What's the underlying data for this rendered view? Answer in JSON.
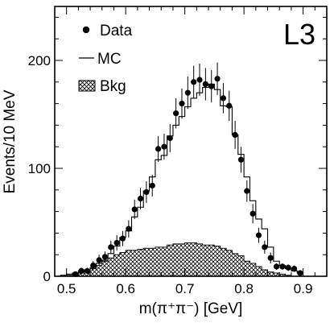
{
  "chart_data": {
    "type": "histogram",
    "panel_label": "L3",
    "xlabel": "m(π⁺π⁻) [GeV]",
    "ylabel": "Events/10 MeV",
    "xlim": [
      0.48,
      0.94
    ],
    "ylim": [
      0,
      250
    ],
    "x_ticks": [
      0.5,
      0.6,
      0.7,
      0.8,
      0.9
    ],
    "y_ticks": [
      0,
      100,
      200
    ],
    "legend": {
      "position": "top-left",
      "entries": [
        {
          "label": "Data",
          "marker": "dot"
        },
        {
          "label": "MC",
          "marker": "line"
        },
        {
          "label": "Bkg",
          "marker": "hatched-box"
        }
      ]
    },
    "bin_width": 0.01,
    "data": {
      "name": "Data",
      "x": [
        0.515,
        0.525,
        0.535,
        0.545,
        0.555,
        0.565,
        0.575,
        0.585,
        0.595,
        0.605,
        0.615,
        0.625,
        0.635,
        0.645,
        0.655,
        0.665,
        0.675,
        0.685,
        0.695,
        0.705,
        0.715,
        0.725,
        0.735,
        0.745,
        0.755,
        0.765,
        0.775,
        0.785,
        0.795,
        0.805,
        0.815,
        0.825,
        0.835,
        0.845,
        0.855,
        0.865,
        0.875,
        0.885,
        0.895
      ],
      "y": [
        2,
        5,
        5,
        10,
        15,
        18,
        27,
        31,
        35,
        44,
        62,
        72,
        78,
        84,
        118,
        120,
        128,
        151,
        160,
        170,
        180,
        182,
        178,
        176,
        183,
        165,
        158,
        131,
        108,
        79,
        58,
        38,
        27,
        17,
        9,
        9,
        8,
        7,
        3
      ],
      "err": [
        2,
        3,
        3,
        4,
        5,
        5,
        6,
        7,
        7,
        8,
        9,
        10,
        10,
        10,
        12,
        12,
        13,
        14,
        14,
        15,
        15,
        15,
        15,
        15,
        15,
        14,
        14,
        13,
        12,
        10,
        9,
        7,
        6,
        5,
        3,
        3,
        3,
        3,
        2
      ]
    },
    "mc": {
      "name": "MC",
      "bin_edges": [
        0.48,
        0.49,
        0.5,
        0.51,
        0.52,
        0.53,
        0.54,
        0.55,
        0.56,
        0.57,
        0.58,
        0.59,
        0.6,
        0.61,
        0.62,
        0.63,
        0.64,
        0.65,
        0.66,
        0.67,
        0.68,
        0.69,
        0.7,
        0.71,
        0.72,
        0.73,
        0.74,
        0.75,
        0.76,
        0.77,
        0.78,
        0.79,
        0.8,
        0.81,
        0.82,
        0.83,
        0.84,
        0.85,
        0.86,
        0.87,
        0.88,
        0.89,
        0.9
      ],
      "values": [
        0,
        1,
        2,
        3,
        5,
        6,
        8,
        12,
        15,
        21,
        28,
        36,
        42,
        55,
        64,
        79,
        92,
        108,
        112,
        130,
        140,
        148,
        157,
        165,
        170,
        175,
        178,
        173,
        158,
        157,
        131,
        113,
        92,
        70,
        53,
        44,
        27,
        14,
        10,
        7,
        5,
        3
      ]
    },
    "background": {
      "name": "Bkg",
      "bin_edges": [
        0.48,
        0.49,
        0.5,
        0.51,
        0.52,
        0.53,
        0.54,
        0.55,
        0.56,
        0.57,
        0.58,
        0.59,
        0.6,
        0.61,
        0.62,
        0.63,
        0.64,
        0.65,
        0.66,
        0.67,
        0.68,
        0.69,
        0.7,
        0.71,
        0.72,
        0.73,
        0.74,
        0.75,
        0.76,
        0.77,
        0.78,
        0.79,
        0.8,
        0.81,
        0.82,
        0.83,
        0.84,
        0.85,
        0.86,
        0.87,
        0.88,
        0.89,
        0.9
      ],
      "values": [
        0,
        0,
        1,
        2,
        3,
        5,
        7,
        10,
        14,
        17,
        20,
        22,
        24,
        24,
        25,
        26,
        26,
        27,
        27,
        29,
        30,
        30,
        31,
        31,
        30,
        29,
        29,
        28,
        26,
        24,
        21,
        19,
        14,
        12,
        9,
        6,
        4,
        3,
        2,
        1,
        0,
        0
      ]
    }
  }
}
